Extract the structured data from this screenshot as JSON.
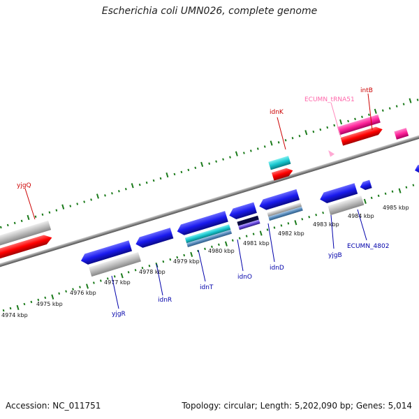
{
  "title": "Escherichia coli UMN026, complete genome",
  "footer": {
    "accession": "Accession: NC_011751",
    "topology": "Topology: circular; Length: 5,202,090 bp; Genes: 5,014"
  },
  "colors": {
    "forward_cds": "#ff0000",
    "reverse_cds": "#1a1aee",
    "pseudo_or_rna": "#c0c0c0",
    "trna_cds": "#ff3399",
    "cyan_feature": "#19c7cf",
    "ruler_tick": "#1a7a1a",
    "backbone": "#8a8a8a",
    "label_forward": "#cc0000",
    "label_reverse": "#0000aa",
    "label_trna": "#ff66aa"
  },
  "kbp_labels": [
    {
      "text": "4974 kbp"
    },
    {
      "text": "4975 kbp"
    },
    {
      "text": "4976 kbp"
    },
    {
      "text": "4977 kbp"
    },
    {
      "text": "4978 kbp"
    },
    {
      "text": "4979 kbp"
    },
    {
      "text": "4980 kbp"
    },
    {
      "text": "4981 kbp"
    },
    {
      "text": "4982 kbp"
    },
    {
      "text": "4983 kbp"
    },
    {
      "text": "4984 kbp"
    },
    {
      "text": "4985 kbp"
    }
  ],
  "gene_labels": [
    {
      "name": "yjgQ",
      "strand": "forward"
    },
    {
      "name": "idnK",
      "strand": "forward"
    },
    {
      "name": "ECUMN_tRNA51",
      "strand": "trna"
    },
    {
      "name": "intB",
      "strand": "forward"
    },
    {
      "name": "yjgR",
      "strand": "reverse"
    },
    {
      "name": "idnR",
      "strand": "reverse"
    },
    {
      "name": "idnT",
      "strand": "reverse"
    },
    {
      "name": "idnO",
      "strand": "reverse"
    },
    {
      "name": "idnD",
      "strand": "reverse"
    },
    {
      "name": "yjgB",
      "strand": "reverse"
    },
    {
      "name": "ECUMN_4802",
      "strand": "reverse"
    }
  ]
}
